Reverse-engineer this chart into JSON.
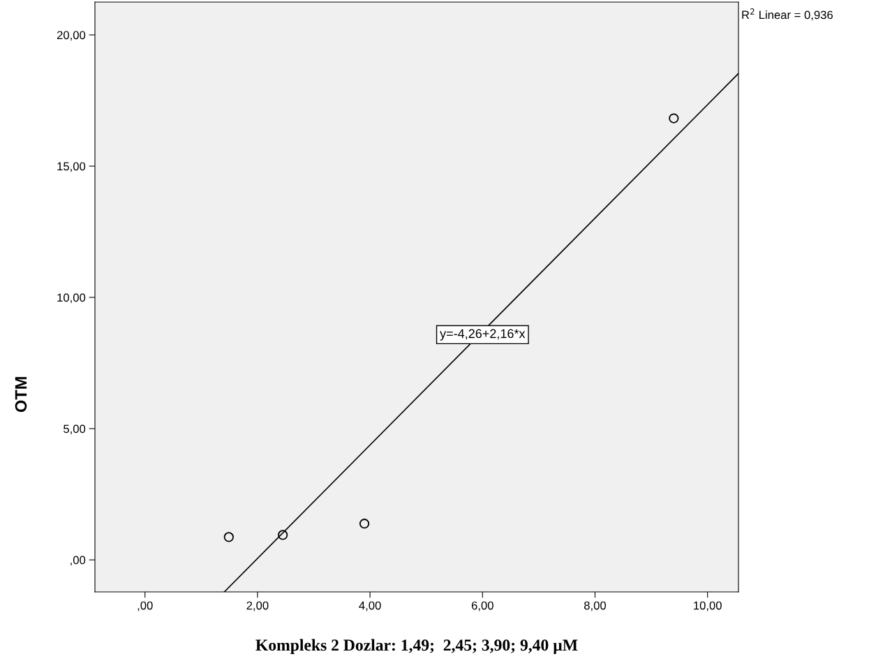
{
  "chart_data": {
    "type": "scatter",
    "xlabel": "Kompleks 2 Dozlar: 1,49;  2,45; 3,90; 9,40 µM",
    "ylabel": "OTM",
    "xlim": [
      -0.89,
      10.55
    ],
    "ylim": [
      -1.22,
      21.25
    ],
    "xticks": [
      {
        "value": 0,
        "label": ",00"
      },
      {
        "value": 2,
        "label": "2,00"
      },
      {
        "value": 4,
        "label": "4,00"
      },
      {
        "value": 6,
        "label": "6,00"
      },
      {
        "value": 8,
        "label": "8,00"
      },
      {
        "value": 10,
        "label": "10,00"
      }
    ],
    "yticks": [
      {
        "value": 0,
        "label": ",00"
      },
      {
        "value": 5,
        "label": "5,00"
      },
      {
        "value": 10,
        "label": "10,00"
      },
      {
        "value": 15,
        "label": "15,00"
      },
      {
        "value": 20,
        "label": "20,00"
      }
    ],
    "series": [
      {
        "type": "scatter",
        "color": "#000000",
        "marker": "circle",
        "x": [
          1.49,
          2.45,
          3.9,
          9.4
        ],
        "values": [
          0.87,
          0.95,
          1.38,
          16.82
        ]
      },
      {
        "type": "line",
        "color": "#000000",
        "line_style": "solid",
        "x": [
          1.41,
          10.55
        ],
        "values": [
          -1.22,
          18.53
        ]
      }
    ],
    "annotations": [
      {
        "text": "y=-4,26+2,16*x",
        "x": 6.0,
        "y": 8.58
      },
      "R$^{2}$ Linear = 0,936"
    ],
    "grid": false,
    "legend": false
  }
}
